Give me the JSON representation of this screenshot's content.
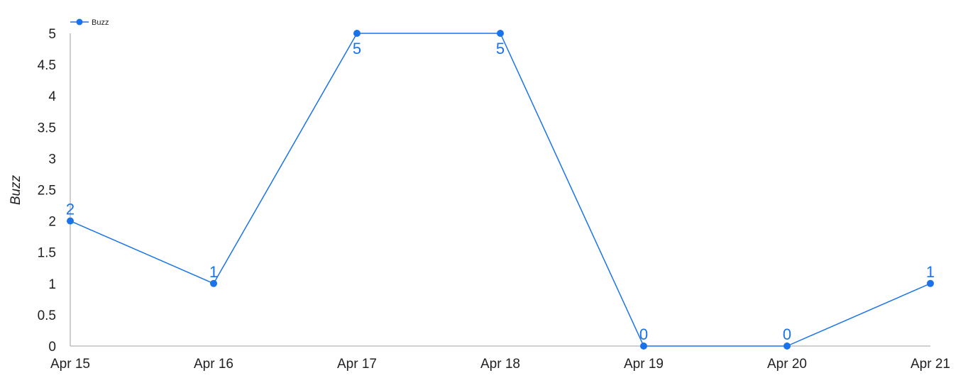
{
  "chart_data": {
    "type": "line",
    "categories": [
      "Apr 15",
      "Apr 16",
      "Apr 17",
      "Apr 18",
      "Apr 19",
      "Apr 20",
      "Apr 21"
    ],
    "series": [
      {
        "name": "Buzz",
        "values": [
          2,
          1,
          5,
          5,
          0,
          0,
          1
        ],
        "color": "#1a73e8"
      }
    ],
    "data_labels": [
      "2",
      "1",
      "5",
      "5",
      "0",
      "0",
      "1"
    ],
    "title": "",
    "xlabel": "",
    "ylabel": "Buzz",
    "ylim": [
      0,
      5
    ],
    "yticks": [
      0,
      0.5,
      1,
      1.5,
      2,
      2.5,
      3,
      3.5,
      4,
      4.5,
      5
    ],
    "ytick_labels": [
      "0",
      "0.5",
      "1",
      "1.5",
      "2",
      "2.5",
      "3",
      "3.5",
      "4",
      "4.5",
      "5"
    ],
    "grid": false,
    "legend_position": "top-left",
    "axis_color": "#9aa0a6"
  }
}
